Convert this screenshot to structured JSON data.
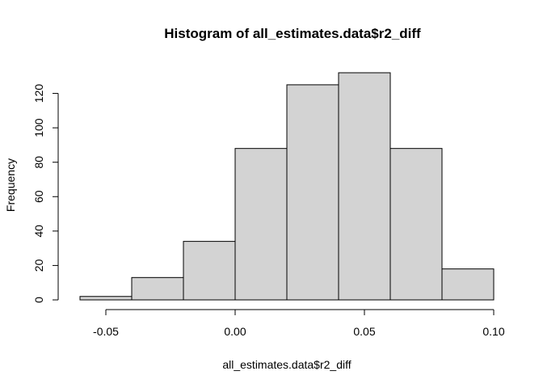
{
  "chart_data": {
    "type": "bar",
    "title": "Histogram of all_estimates.data$r2_diff",
    "xlabel": "all_estimates.data$r2_diff",
    "ylabel": "Frequency",
    "bin_edges": [
      -0.06,
      -0.04,
      -0.02,
      0.0,
      0.02,
      0.04,
      0.06,
      0.08,
      0.1
    ],
    "values": [
      2,
      13,
      34,
      88,
      125,
      132,
      88,
      18
    ],
    "xlim": [
      -0.06,
      0.1
    ],
    "ylim": [
      0,
      132
    ],
    "x_ticks": [
      -0.05,
      0.0,
      0.05,
      0.1
    ],
    "x_tick_labels": [
      "-0.05",
      "0.00",
      "0.05",
      "0.10"
    ],
    "y_ticks": [
      0,
      20,
      40,
      60,
      80,
      100,
      120
    ],
    "y_tick_labels": [
      "0",
      "20",
      "40",
      "60",
      "80",
      "100",
      "120"
    ],
    "grid": false,
    "colors": {
      "bar_fill": "#d3d3d3",
      "bar_stroke": "#000000"
    }
  }
}
